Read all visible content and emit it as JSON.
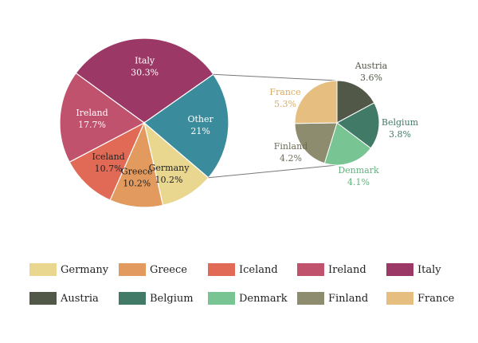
{
  "chart_data": {
    "type": "pie",
    "subtype": "pie-of-pie",
    "main": {
      "slices": [
        {
          "label": "Italy",
          "value": 30.3,
          "display": "30.3%",
          "color": "#9b3866",
          "label_color": "#ffffff"
        },
        {
          "label": "Other",
          "value": 21,
          "display": "21%",
          "color": "#3a8c9c",
          "label_color": "#ffffff"
        },
        {
          "label": "Germany",
          "value": 10.2,
          "display": "10.2%",
          "color": "#e9d68f",
          "label_color": "#222222"
        },
        {
          "label": "Greece",
          "value": 10.2,
          "display": "10.2%",
          "color": "#e29a5e",
          "label_color": "#222222"
        },
        {
          "label": "Iceland",
          "value": 10.7,
          "display": "10.7%",
          "color": "#e06a55",
          "label_color": "#222222"
        },
        {
          "label": "Ireland",
          "value": 17.7,
          "display": "17.7%",
          "color": "#c0526d",
          "label_color": "#ffffff"
        }
      ]
    },
    "secondary": {
      "of": "Other",
      "slices": [
        {
          "label": "Austria",
          "value": 3.6,
          "display": "3.6%",
          "color": "#525848",
          "label_color": "#525848"
        },
        {
          "label": "Belgium",
          "value": 3.8,
          "display": "3.8%",
          "color": "#427a68",
          "label_color": "#427a68"
        },
        {
          "label": "Denmark",
          "value": 4.1,
          "display": "4.1%",
          "color": "#78c492",
          "label_color": "#62b27e"
        },
        {
          "label": "Finland",
          "value": 4.2,
          "display": "4.2%",
          "color": "#8e8c6e",
          "label_color": "#6e6c56"
        },
        {
          "label": "France",
          "value": 5.3,
          "display": "5.3%",
          "color": "#e6bf80",
          "label_color": "#d8ad68"
        }
      ]
    },
    "connector_color": "#777777",
    "legend": {
      "position": "bottom",
      "rows": [
        [
          {
            "label": "Germany",
            "color": "#e9d68f"
          },
          {
            "label": "Greece",
            "color": "#e29a5e"
          },
          {
            "label": "Iceland",
            "color": "#e06a55"
          },
          {
            "label": "Ireland",
            "color": "#c0526d"
          },
          {
            "label": "Italy",
            "color": "#9b3866"
          }
        ],
        [
          {
            "label": "Austria",
            "color": "#525848"
          },
          {
            "label": "Belgium",
            "color": "#427a68"
          },
          {
            "label": "Denmark",
            "color": "#78c492"
          },
          {
            "label": "Finland",
            "color": "#8e8c6e"
          },
          {
            "label": "France",
            "color": "#e6bf80"
          }
        ]
      ]
    }
  }
}
